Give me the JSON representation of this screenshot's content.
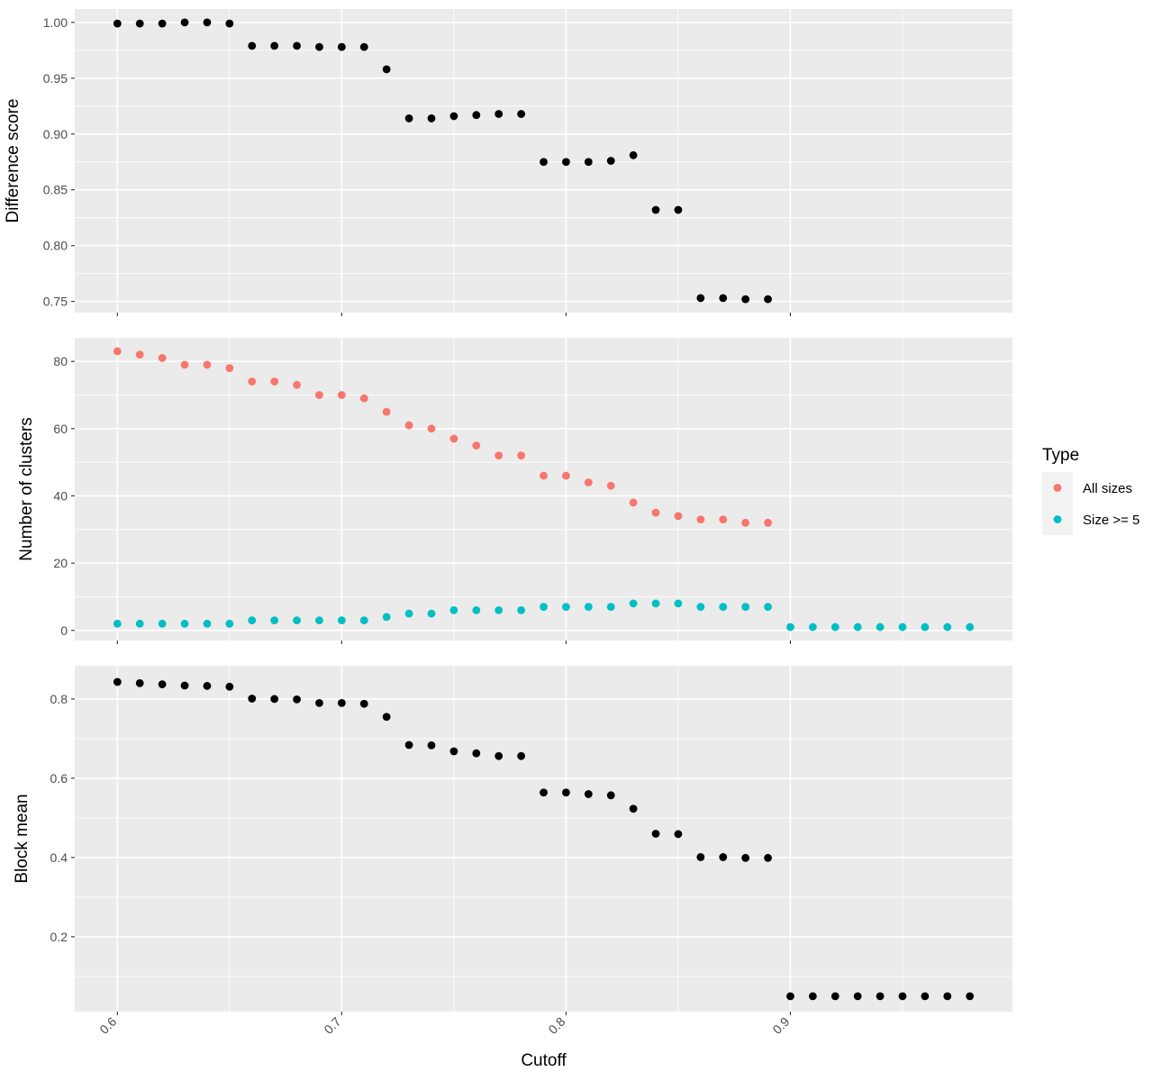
{
  "chart_data": {
    "type": "scatter",
    "xlabel": "Cutoff",
    "xlim": [
      0.581,
      0.999
    ],
    "xticks": [
      0.6,
      0.7,
      0.8,
      0.9
    ],
    "xtick_labels": [
      "0.6",
      "0.7",
      "0.8",
      "0.9"
    ],
    "panels": [
      {
        "ylabel": "Difference score",
        "ylim": [
          0.74,
          1.012
        ],
        "yticks": [
          0.75,
          0.8,
          0.85,
          0.9,
          0.95,
          1.0
        ],
        "ytick_labels": [
          "0.75",
          "0.80",
          "0.85",
          "0.90",
          "0.95",
          "1.00"
        ],
        "series": [
          {
            "color": "#000000",
            "x": [
              0.6,
              0.61,
              0.62,
              0.63,
              0.64,
              0.65,
              0.66,
              0.67,
              0.68,
              0.69,
              0.7,
              0.71,
              0.72,
              0.73,
              0.74,
              0.75,
              0.76,
              0.77,
              0.78,
              0.79,
              0.8,
              0.81,
              0.82,
              0.83,
              0.84,
              0.85,
              0.86,
              0.87,
              0.88,
              0.89
            ],
            "y": [
              0.999,
              0.999,
              0.999,
              1.0,
              1.0,
              0.999,
              0.979,
              0.979,
              0.979,
              0.978,
              0.978,
              0.978,
              0.958,
              0.914,
              0.914,
              0.916,
              0.917,
              0.918,
              0.918,
              0.875,
              0.875,
              0.875,
              0.876,
              0.881,
              0.832,
              0.832,
              0.753,
              0.753,
              0.752,
              0.752
            ]
          }
        ]
      },
      {
        "ylabel": "Number of clusters",
        "ylim": [
          -3,
          87
        ],
        "yticks": [
          0,
          20,
          40,
          60,
          80
        ],
        "ytick_labels": [
          "0",
          "20",
          "40",
          "60",
          "80"
        ],
        "series": [
          {
            "name": "All sizes",
            "color": "#F8766D",
            "x": [
              0.6,
              0.61,
              0.62,
              0.63,
              0.64,
              0.65,
              0.66,
              0.67,
              0.68,
              0.69,
              0.7,
              0.71,
              0.72,
              0.73,
              0.74,
              0.75,
              0.76,
              0.77,
              0.78,
              0.79,
              0.8,
              0.81,
              0.82,
              0.83,
              0.84,
              0.85,
              0.86,
              0.87,
              0.88,
              0.89
            ],
            "y": [
              83,
              82,
              81,
              79,
              79,
              78,
              74,
              74,
              73,
              70,
              70,
              69,
              65,
              61,
              60,
              57,
              55,
              52,
              52,
              46,
              46,
              44,
              43,
              38,
              35,
              34,
              33,
              33,
              32,
              32
            ]
          },
          {
            "name": "Size >= 5",
            "color": "#00BFC4",
            "x": [
              0.6,
              0.61,
              0.62,
              0.63,
              0.64,
              0.65,
              0.66,
              0.67,
              0.68,
              0.69,
              0.7,
              0.71,
              0.72,
              0.73,
              0.74,
              0.75,
              0.76,
              0.77,
              0.78,
              0.79,
              0.8,
              0.81,
              0.82,
              0.83,
              0.84,
              0.85,
              0.86,
              0.87,
              0.88,
              0.89,
              0.9,
              0.91,
              0.92,
              0.93,
              0.94,
              0.95,
              0.96,
              0.97,
              0.98
            ],
            "y": [
              2,
              2,
              2,
              2,
              2,
              2,
              3,
              3,
              3,
              3,
              3,
              3,
              4,
              5,
              5,
              6,
              6,
              6,
              6,
              7,
              7,
              7,
              7,
              8,
              8,
              8,
              7,
              7,
              7,
              7,
              1,
              1,
              1,
              1,
              1,
              1,
              1,
              1,
              1
            ]
          }
        ]
      },
      {
        "ylabel": "Block mean",
        "ylim": [
          0.011,
          0.884
        ],
        "yticks": [
          0.2,
          0.4,
          0.6,
          0.8
        ],
        "ytick_labels": [
          "0.2",
          "0.4",
          "0.6",
          "0.8"
        ],
        "series": [
          {
            "color": "#000000",
            "x": [
              0.6,
              0.61,
              0.62,
              0.63,
              0.64,
              0.65,
              0.66,
              0.67,
              0.68,
              0.69,
              0.7,
              0.71,
              0.72,
              0.73,
              0.74,
              0.75,
              0.76,
              0.77,
              0.78,
              0.79,
              0.8,
              0.81,
              0.82,
              0.83,
              0.84,
              0.85,
              0.86,
              0.87,
              0.88,
              0.89,
              0.9,
              0.91,
              0.92,
              0.93,
              0.94,
              0.95,
              0.96,
              0.97,
              0.98
            ],
            "y": [
              0.843,
              0.84,
              0.837,
              0.834,
              0.833,
              0.831,
              0.801,
              0.8,
              0.799,
              0.79,
              0.79,
              0.788,
              0.755,
              0.684,
              0.683,
              0.668,
              0.663,
              0.656,
              0.656,
              0.564,
              0.564,
              0.56,
              0.557,
              0.523,
              0.46,
              0.459,
              0.401,
              0.401,
              0.399,
              0.399,
              0.05,
              0.05,
              0.05,
              0.05,
              0.05,
              0.05,
              0.05,
              0.05,
              0.05
            ]
          }
        ]
      }
    ],
    "legend": {
      "title": "Type",
      "position": "right",
      "entries": [
        {
          "label": "All sizes",
          "color": "#F8766D"
        },
        {
          "label": "Size >= 5",
          "color": "#00BFC4"
        }
      ]
    }
  }
}
